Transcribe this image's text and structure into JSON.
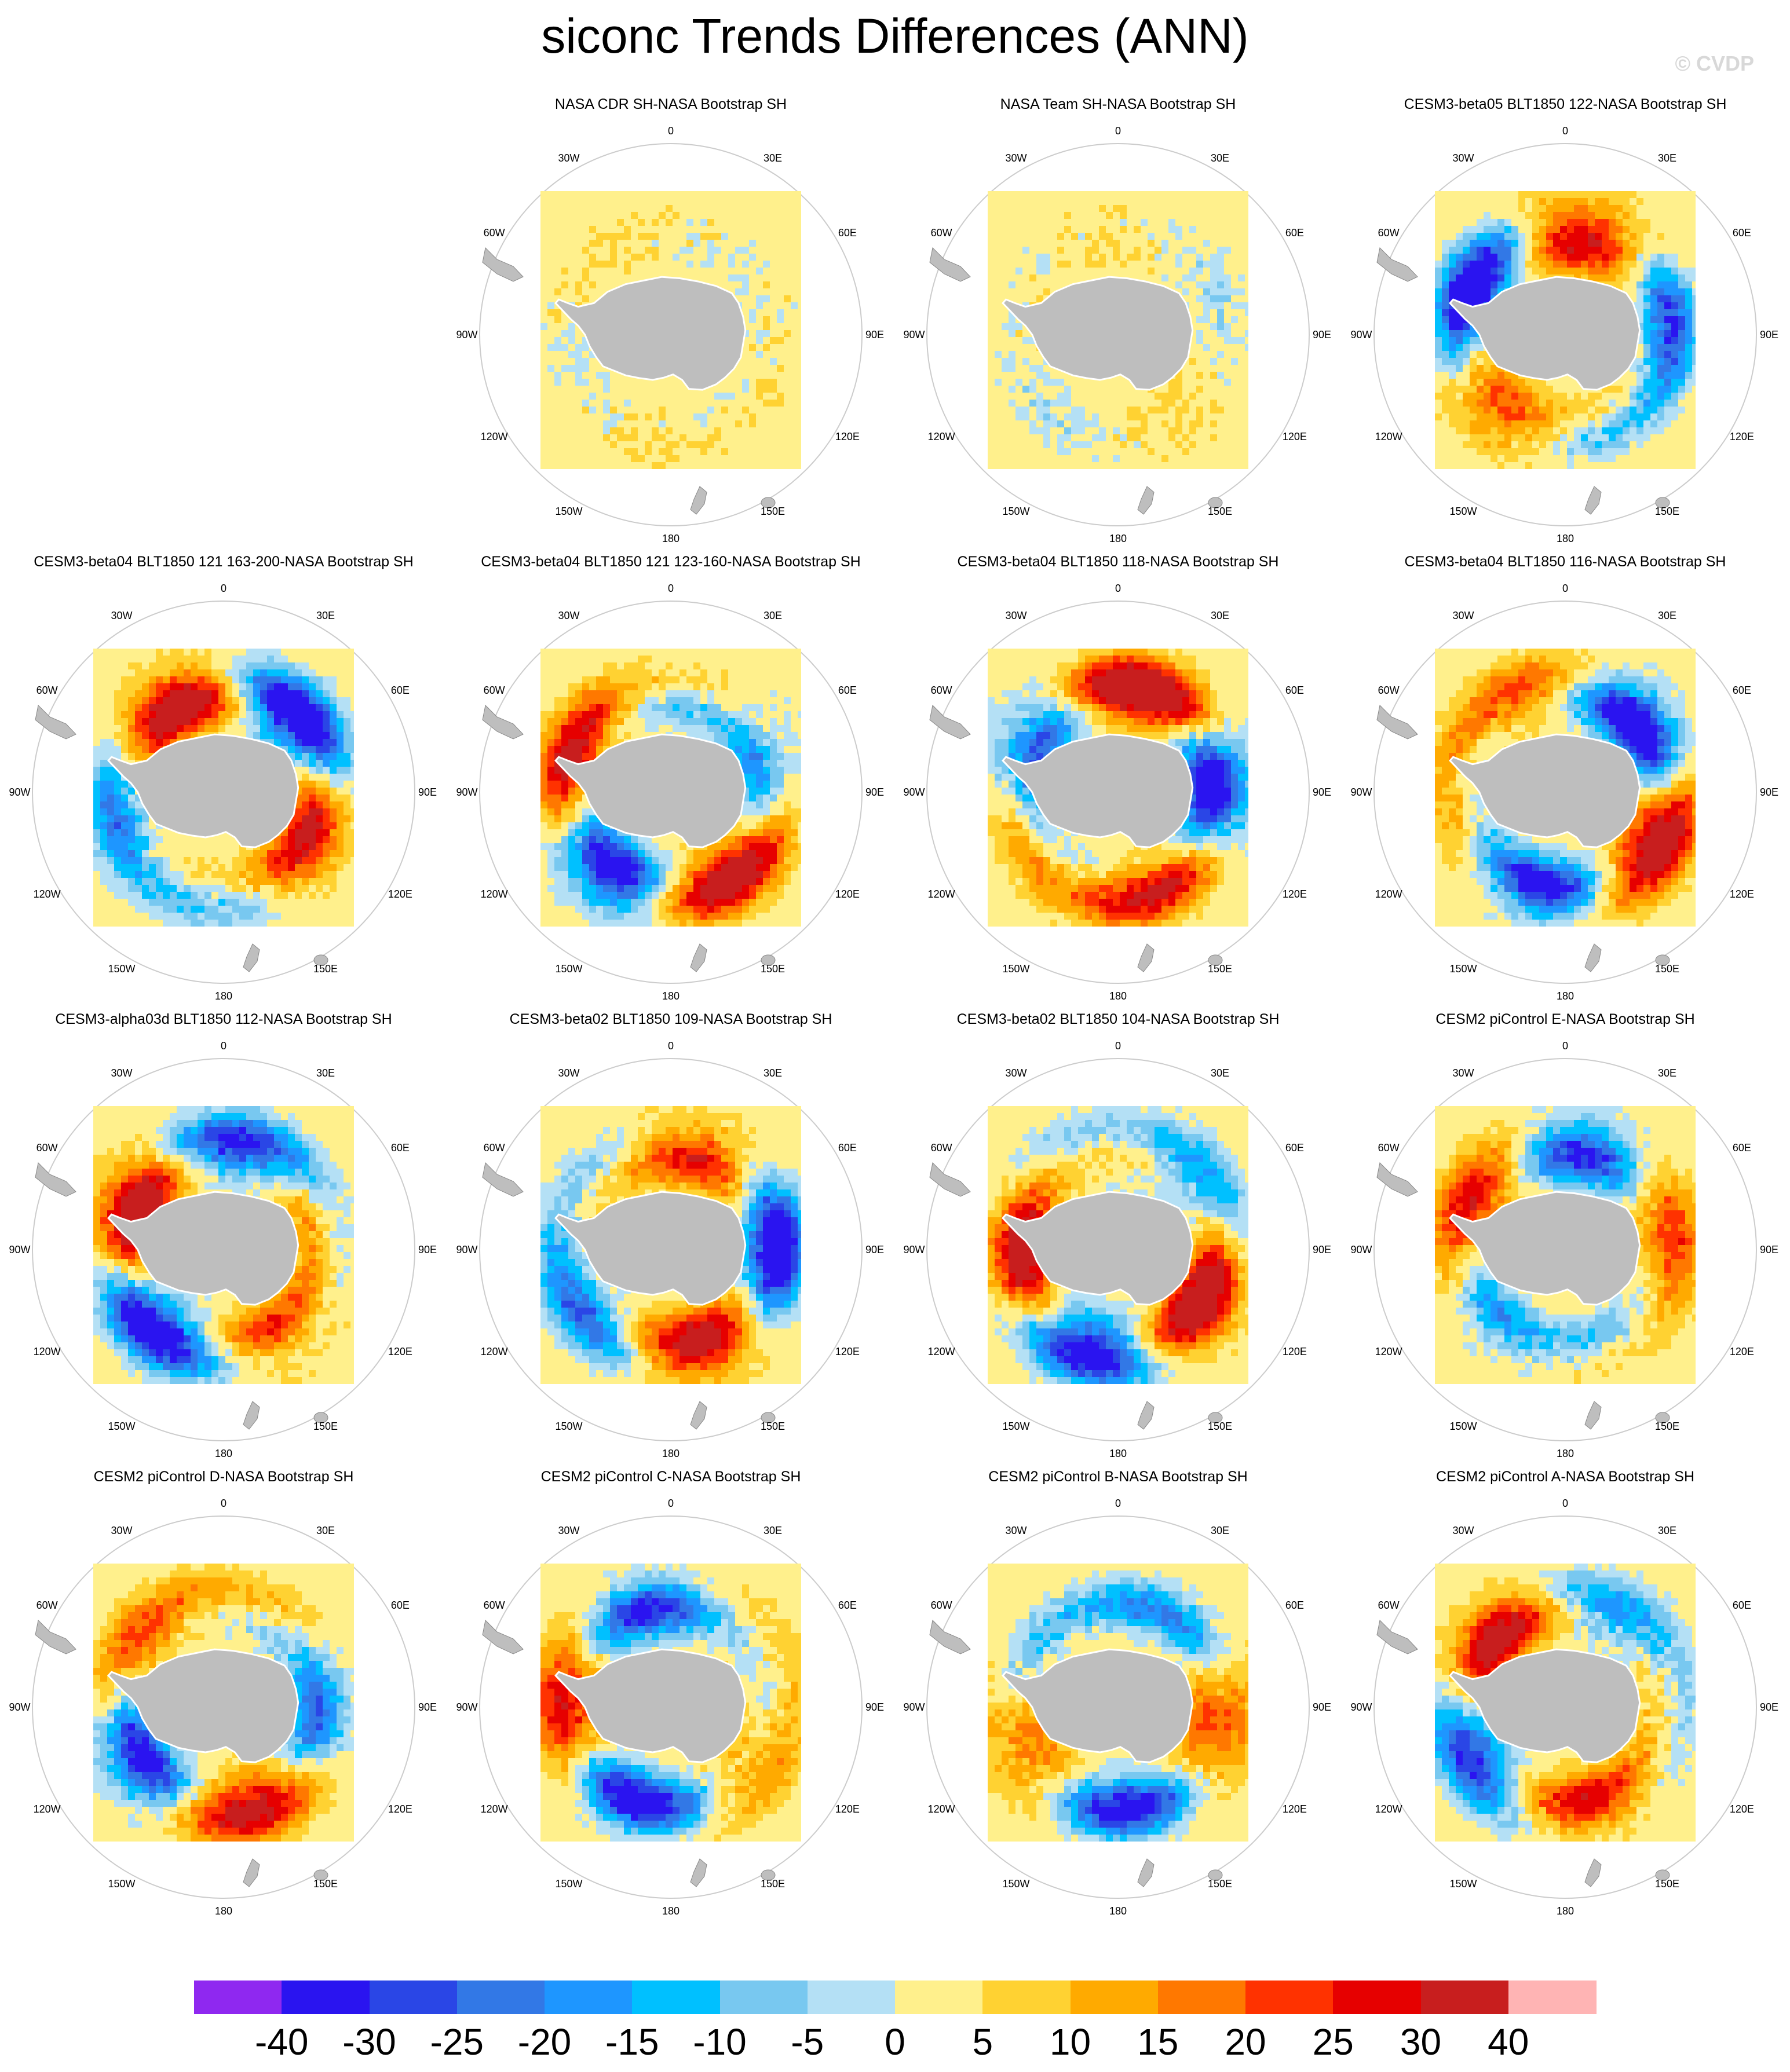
{
  "title": "siconc Trends Differences (ANN)",
  "watermark": "© CVDP",
  "lon_labels": [
    "0",
    "30E",
    "60E",
    "90E",
    "120E",
    "150E",
    "180",
    "150W",
    "120W",
    "90W",
    "60W",
    "30W"
  ],
  "panels": [
    {
      "title": "NASA CDR SH-NASA Bootstrap SH",
      "intensity": 0.05,
      "seed": 11
    },
    {
      "title": "NASA Team SH-NASA Bootstrap SH",
      "intensity": 0.1,
      "seed": 23
    },
    {
      "title": "CESM3-beta05 BLT1850 122-NASA Bootstrap SH",
      "intensity": 0.75,
      "seed": 37
    },
    {
      "title": "CESM3-beta04 BLT1850 121 163-200-NASA Bootstrap SH",
      "intensity": 0.85,
      "seed": 41
    },
    {
      "title": "CESM3-beta04 BLT1850 121 123-160-NASA Bootstrap SH",
      "intensity": 0.8,
      "seed": 53
    },
    {
      "title": "CESM3-beta04 BLT1850 118-NASA Bootstrap SH",
      "intensity": 0.9,
      "seed": 67
    },
    {
      "title": "CESM3-beta04 BLT1850 116-NASA Bootstrap SH",
      "intensity": 0.85,
      "seed": 71
    },
    {
      "title": "CESM3-alpha03d BLT1850 112-NASA Bootstrap SH",
      "intensity": 0.85,
      "seed": 83
    },
    {
      "title": "CESM3-beta02 BLT1850 109-NASA Bootstrap SH",
      "intensity": 0.8,
      "seed": 97
    },
    {
      "title": "CESM3-beta02 BLT1850 104-NASA Bootstrap SH",
      "intensity": 0.85,
      "seed": 101
    },
    {
      "title": "CESM2 piControl E-NASA Bootstrap SH",
      "intensity": 0.6,
      "seed": 113
    },
    {
      "title": "CESM2 piControl D-NASA Bootstrap SH",
      "intensity": 0.7,
      "seed": 127
    },
    {
      "title": "CESM2 piControl C-NASA Bootstrap SH",
      "intensity": 0.7,
      "seed": 131
    },
    {
      "title": "CESM2 piControl B-NASA Bootstrap SH",
      "intensity": 0.6,
      "seed": 149
    },
    {
      "title": "CESM2 piControl A-NASA Bootstrap SH",
      "intensity": 0.7,
      "seed": 157
    }
  ],
  "colorbar": {
    "labels": [
      "-40",
      "-30",
      "-25",
      "-20",
      "-15",
      "-10",
      "-5",
      "0",
      "5",
      "10",
      "15",
      "20",
      "25",
      "30",
      "40"
    ],
    "colors": [
      "#8f28f0",
      "#2a14f0",
      "#2a46e6",
      "#3278e6",
      "#1e96ff",
      "#00c0ff",
      "#78c8f0",
      "#b4e0f5",
      "#fff08c",
      "#ffd232",
      "#ffaa00",
      "#ff7800",
      "#ff3200",
      "#e60000",
      "#c81e1e",
      "#ffb4b4"
    ]
  },
  "colors": {
    "land": "#bebebe",
    "coast": "#ffffff",
    "outline": "#cccccc"
  }
}
